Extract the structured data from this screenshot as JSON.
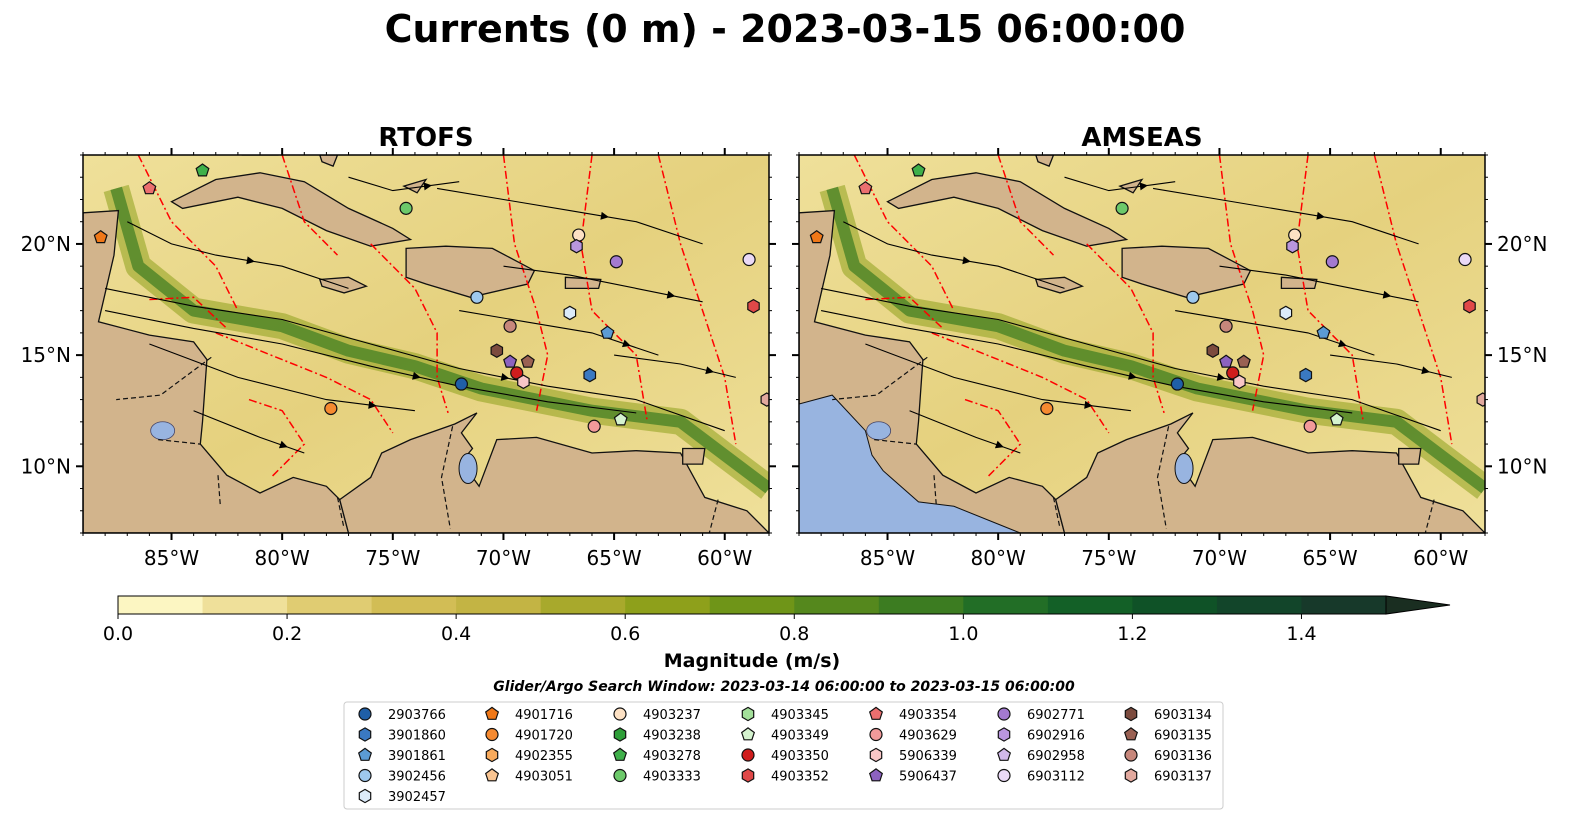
{
  "title": "Currents (0 m) - 2023-03-15 06:00:00",
  "panels": [
    {
      "title": "RTOFS"
    },
    {
      "title": "AMSEAS"
    }
  ],
  "map_extent": {
    "lon": [
      -89,
      -58
    ],
    "lat": [
      7,
      24
    ]
  },
  "x_ticks": [
    {
      "value": -85,
      "label": "85°W"
    },
    {
      "value": -80,
      "label": "80°W"
    },
    {
      "value": -75,
      "label": "75°W"
    },
    {
      "value": -70,
      "label": "70°W"
    },
    {
      "value": -65,
      "label": "65°W"
    },
    {
      "value": -60,
      "label": "60°W"
    }
  ],
  "y_ticks": [
    {
      "value": 20,
      "label": "20°N"
    },
    {
      "value": 15,
      "label": "15°N"
    },
    {
      "value": 10,
      "label": "10°N"
    }
  ],
  "colorbar": {
    "label": "Magnitude (m/s)",
    "range": [
      0,
      1.5
    ],
    "extend": "max",
    "colors": [
      "#fcf6c2",
      "#efe09a",
      "#e0cc72",
      "#d2bd55",
      "#c3b444",
      "#a8a92c",
      "#8ea01b",
      "#6f9518",
      "#55881d",
      "#3c7c21",
      "#226e26",
      "#136027",
      "#0f5227",
      "#12452a",
      "#17392a",
      "#1a2e21"
    ],
    "ticks": [
      {
        "value": 0.0,
        "label": "0.0"
      },
      {
        "value": 0.2,
        "label": "0.2"
      },
      {
        "value": 0.4,
        "label": "0.4"
      },
      {
        "value": 0.6,
        "label": "0.6"
      },
      {
        "value": 0.8,
        "label": "0.8"
      },
      {
        "value": 1.0,
        "label": "1.0"
      },
      {
        "value": 1.2,
        "label": "1.2"
      },
      {
        "value": 1.4,
        "label": "1.4"
      }
    ]
  },
  "search_window": "Glider/Argo Search Window: 2023-03-14 06:00:00 to 2023-03-15 06:00:00",
  "legend": {
    "placement": "bottom-center",
    "columns": [
      [
        {
          "label": "2903766",
          "marker": "circle",
          "color": "#1f5fa8"
        },
        {
          "label": "3901860",
          "marker": "hexagon",
          "color": "#3a79c2"
        },
        {
          "label": "3901861",
          "marker": "pentagon",
          "color": "#5b9bd5"
        },
        {
          "label": "3902456",
          "marker": "circle",
          "color": "#9ec8ee"
        },
        {
          "label": "3902457",
          "marker": "hexagon",
          "color": "#dcebfa"
        }
      ],
      [
        {
          "label": "4901716",
          "marker": "pentagon",
          "color": "#f07818"
        },
        {
          "label": "4901720",
          "marker": "circle",
          "color": "#f68a30"
        },
        {
          "label": "4902355",
          "marker": "hexagon",
          "color": "#f8aa5c"
        },
        {
          "label": "4903051",
          "marker": "pentagon",
          "color": "#fac592"
        }
      ],
      [
        {
          "label": "4903237",
          "marker": "circle",
          "color": "#fde1c4"
        },
        {
          "label": "4903238",
          "marker": "hexagon",
          "color": "#2e9e38"
        },
        {
          "label": "4903278",
          "marker": "pentagon",
          "color": "#3fb04a"
        },
        {
          "label": "4903333",
          "marker": "circle",
          "color": "#6cc96a"
        }
      ],
      [
        {
          "label": "4903345",
          "marker": "hexagon",
          "color": "#a3df9a"
        },
        {
          "label": "4903349",
          "marker": "pentagon",
          "color": "#d5f3cf"
        },
        {
          "label": "4903350",
          "marker": "circle",
          "color": "#d01d1d"
        },
        {
          "label": "4903352",
          "marker": "hexagon",
          "color": "#e04848"
        }
      ],
      [
        {
          "label": "4903354",
          "marker": "pentagon",
          "color": "#ec6f6f"
        },
        {
          "label": "4903629",
          "marker": "circle",
          "color": "#f29a9a"
        },
        {
          "label": "5906339",
          "marker": "hexagon",
          "color": "#f8c6c6"
        },
        {
          "label": "5906437",
          "marker": "pentagon",
          "color": "#8c62c0"
        }
      ],
      [
        {
          "label": "6902771",
          "marker": "circle",
          "color": "#a37ad0"
        },
        {
          "label": "6902916",
          "marker": "hexagon",
          "color": "#b996de"
        },
        {
          "label": "6902958",
          "marker": "pentagon",
          "color": "#d1b8ea"
        },
        {
          "label": "6903112",
          "marker": "circle",
          "color": "#ead9f6"
        }
      ],
      [
        {
          "label": "6903134",
          "marker": "hexagon",
          "color": "#7c4b3e"
        },
        {
          "label": "6903135",
          "marker": "pentagon",
          "color": "#9a6153"
        },
        {
          "label": "6903136",
          "marker": "circle",
          "color": "#c7877b"
        },
        {
          "label": "6903137",
          "marker": "hexagon",
          "color": "#e2a99e"
        }
      ]
    ]
  },
  "colors": {
    "land": "#d2b48c",
    "water_body": "#98b4e0",
    "eez_boundary": "#ff0000",
    "streamline": "#000000"
  },
  "chart_data": {
    "type": "scatter",
    "title": "Currents (0 m) - 2023-03-15 06:00:00",
    "xlabel": "",
    "ylabel": "",
    "xlim": [
      -89,
      -58
    ],
    "ylim": [
      7,
      24
    ],
    "panels": [
      "RTOFS",
      "AMSEAS"
    ],
    "series": [
      {
        "name": "2903766",
        "points": [
          [
            -71.9,
            13.7
          ]
        ]
      },
      {
        "name": "3902456",
        "points": [
          [
            -71.2,
            17.6
          ]
        ]
      },
      {
        "name": "3901861",
        "points": [
          [
            -65.3,
            16.0
          ]
        ]
      },
      {
        "name": "3901860",
        "points": [
          [
            -66.1,
            14.1
          ]
        ]
      },
      {
        "name": "3902457",
        "points": [
          [
            -67.0,
            16.9
          ]
        ]
      },
      {
        "name": "4901716",
        "points": [
          [
            -88.2,
            20.3
          ]
        ]
      },
      {
        "name": "4901720",
        "points": [
          [
            -77.8,
            12.6
          ]
        ]
      },
      {
        "name": "4903237",
        "points": [
          [
            -66.6,
            20.4
          ]
        ]
      },
      {
        "name": "4903278",
        "points": [
          [
            -83.6,
            23.3
          ]
        ]
      },
      {
        "name": "4903333",
        "points": [
          [
            -74.4,
            21.6
          ]
        ]
      },
      {
        "name": "4903349",
        "points": [
          [
            -64.7,
            12.1
          ]
        ]
      },
      {
        "name": "4903350",
        "points": [
          [
            -69.4,
            14.2
          ]
        ]
      },
      {
        "name": "4903352",
        "points": [
          [
            -58.7,
            17.2
          ]
        ]
      },
      {
        "name": "4903354",
        "points": [
          [
            -86.0,
            22.5
          ]
        ]
      },
      {
        "name": "4903629",
        "points": [
          [
            -65.9,
            11.8
          ]
        ]
      },
      {
        "name": "5906339",
        "points": [
          [
            -69.1,
            13.8
          ]
        ]
      },
      {
        "name": "5906437",
        "points": [
          [
            -69.7,
            14.7
          ]
        ]
      },
      {
        "name": "6902771",
        "points": [
          [
            -64.9,
            19.2
          ]
        ]
      },
      {
        "name": "6902916",
        "points": [
          [
            -66.7,
            19.9
          ]
        ]
      },
      {
        "name": "6903112",
        "points": [
          [
            -58.9,
            19.3
          ]
        ]
      },
      {
        "name": "6903134",
        "points": [
          [
            -70.3,
            15.2
          ]
        ]
      },
      {
        "name": "6903135",
        "points": [
          [
            -68.9,
            14.7
          ]
        ]
      },
      {
        "name": "6903136",
        "points": [
          [
            -69.7,
            16.3
          ]
        ]
      },
      {
        "name": "6903137",
        "points": [
          [
            -58.1,
            13.0
          ]
        ]
      }
    ]
  }
}
